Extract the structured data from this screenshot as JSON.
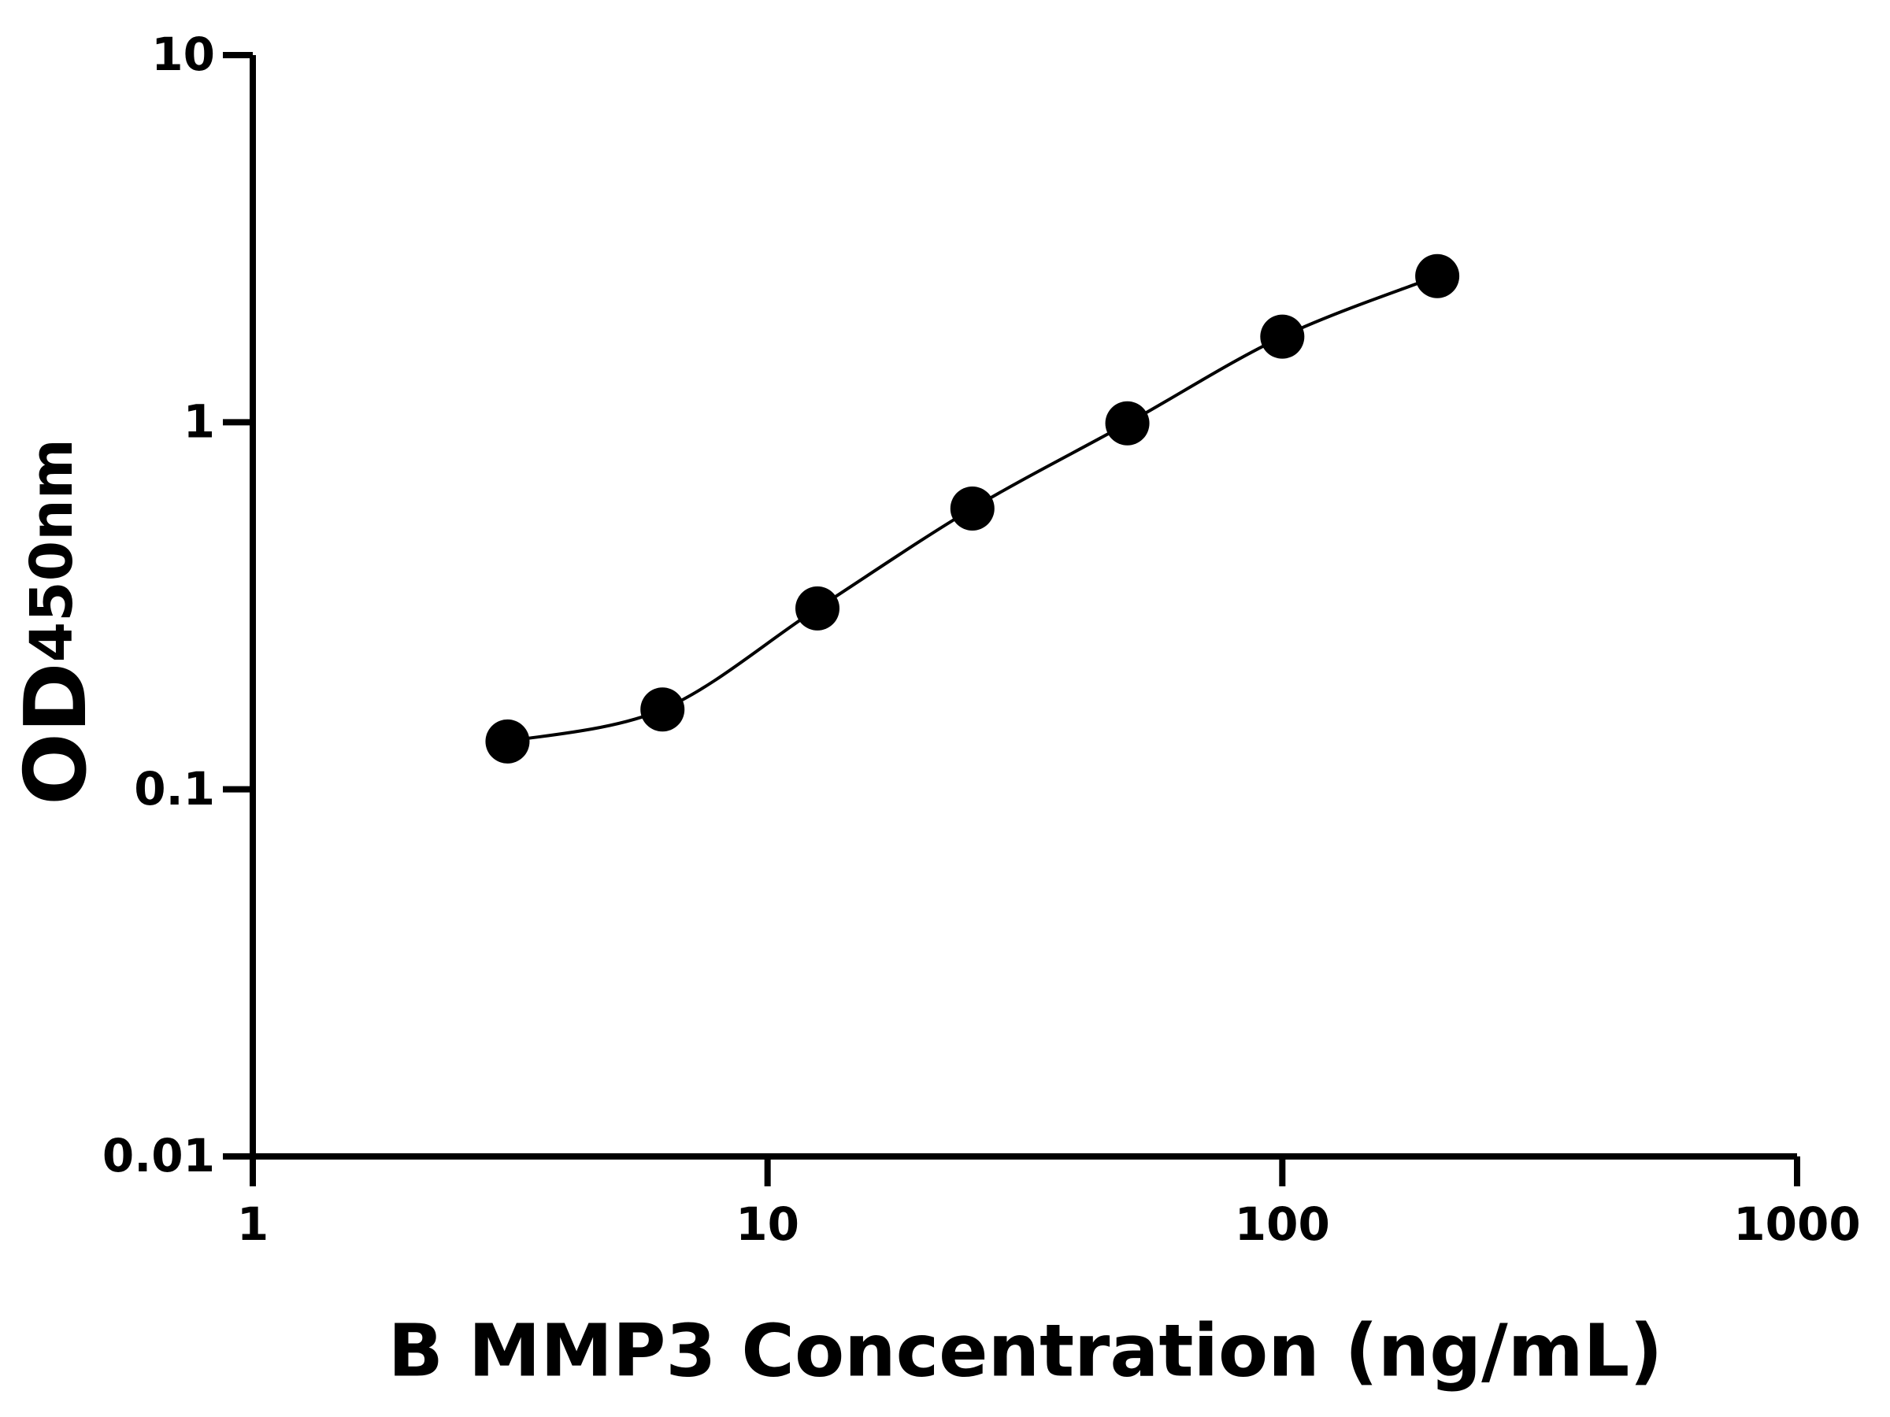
{
  "chart_data": {
    "type": "scatter",
    "x_label": "B MMP3 Concentration (ng/mL)",
    "y_label": "OD",
    "y_label_subscript": "450nm",
    "x": [
      3.125,
      6.25,
      12.5,
      25,
      50,
      100,
      200
    ],
    "values": [
      0.135,
      0.165,
      0.311,
      0.582,
      0.993,
      1.71,
      2.5
    ],
    "color": "#000000",
    "fit_curve": true,
    "x_log": true,
    "y_log": true,
    "xlim": [
      1,
      1000
    ],
    "xticks": [
      1,
      10,
      100,
      1000
    ],
    "ylim": [
      0.01,
      10
    ],
    "yticks": [
      0.01,
      0.1,
      1,
      10
    ]
  }
}
